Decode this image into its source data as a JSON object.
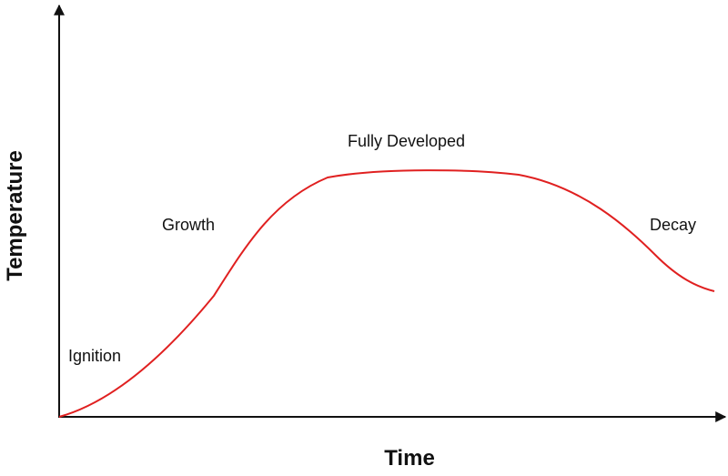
{
  "axes": {
    "x_label": "Time",
    "y_label": "Temperature"
  },
  "stages": [
    "Ignition",
    "Growth",
    "Fully Developed",
    "Decay"
  ]
}
